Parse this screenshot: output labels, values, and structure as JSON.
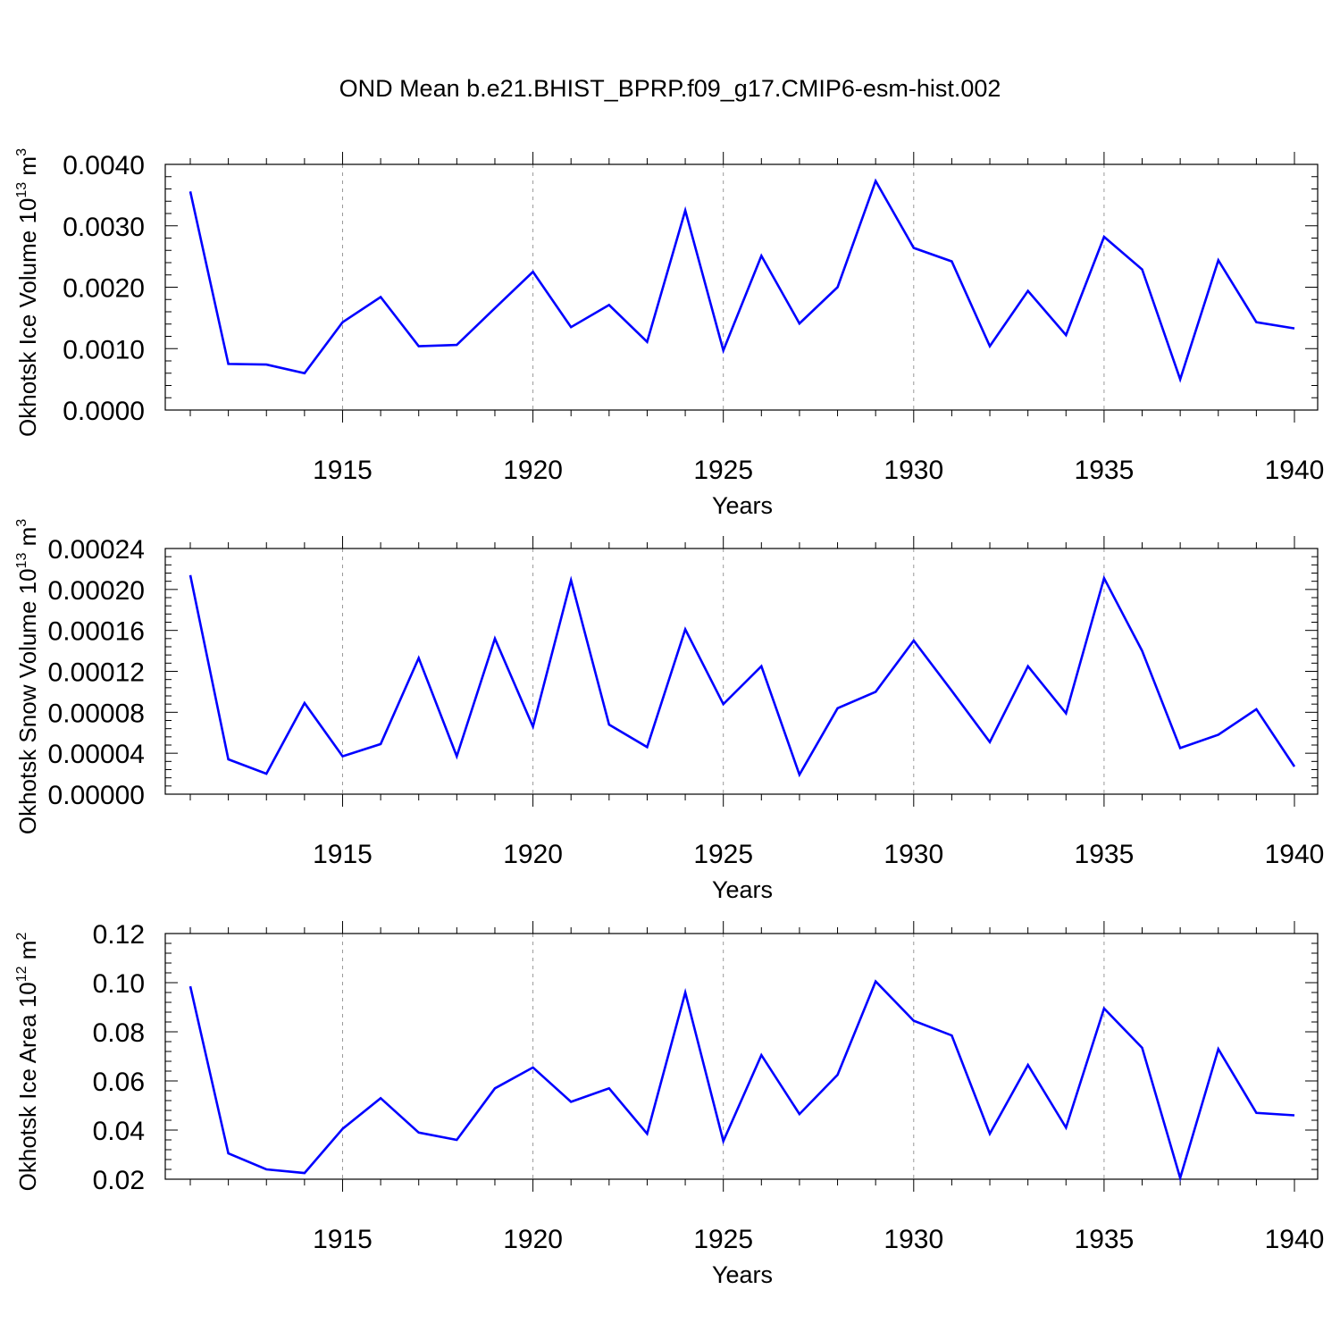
{
  "title": "OND Mean b.e21.BHIST_BPRP.f09_g17.CMIP6-esm-hist.002",
  "colors": {
    "line": "#0000ff",
    "axis": "#000000",
    "grid": "#999999"
  },
  "chart_data": [
    {
      "type": "line",
      "ylabel": "Okhotsk Ice Volume 10",
      "ylabel_exp": "13",
      "ylabel_unit": " m",
      "ylabel_unit_exp": "3",
      "xlabel": "Years",
      "xlim": [
        1911,
        1940
      ],
      "ylim": [
        0,
        0.004
      ],
      "yticks": [
        0,
        0.001,
        0.002,
        0.003,
        0.004
      ],
      "ytick_labels": [
        "0.0000",
        "0.0010",
        "0.0020",
        "0.0030",
        "0.0040"
      ],
      "xticks": [
        1915,
        1920,
        1925,
        1930,
        1935,
        1940
      ],
      "xtick_labels": [
        "1915",
        "1920",
        "1925",
        "1930",
        "1935",
        "1940"
      ],
      "x": [
        1911,
        1912,
        1913,
        1914,
        1915,
        1916,
        1917,
        1918,
        1919,
        1920,
        1921,
        1922,
        1923,
        1924,
        1925,
        1926,
        1927,
        1928,
        1929,
        1930,
        1931,
        1932,
        1933,
        1934,
        1935,
        1936,
        1937,
        1938,
        1939,
        1940
      ],
      "values": [
        0.00356,
        0.00075,
        0.00074,
        0.0006,
        0.00143,
        0.00184,
        0.00104,
        0.00106,
        0.00166,
        0.00225,
        0.00135,
        0.00171,
        0.00111,
        0.00325,
        0.00097,
        0.00251,
        0.00141,
        0.002,
        0.00373,
        0.00264,
        0.00242,
        0.00104,
        0.00194,
        0.00122,
        0.00282,
        0.00229,
        0.0005,
        0.00244,
        0.00143,
        0.00133
      ]
    },
    {
      "type": "line",
      "ylabel": "Okhotsk Snow Volume 10",
      "ylabel_exp": "13",
      "ylabel_unit": " m",
      "ylabel_unit_exp": "3",
      "xlabel": "Years",
      "xlim": [
        1911,
        1940
      ],
      "ylim": [
        0,
        0.00024
      ],
      "yticks": [
        0,
        4e-05,
        8e-05,
        0.00012,
        0.00016,
        0.0002,
        0.00024
      ],
      "ytick_labels": [
        "0.00000",
        "0.00004",
        "0.00008",
        "0.00012",
        "0.00016",
        "0.00020",
        "0.00024"
      ],
      "xticks": [
        1915,
        1920,
        1925,
        1930,
        1935,
        1940
      ],
      "xtick_labels": [
        "1915",
        "1920",
        "1925",
        "1930",
        "1935",
        "1940"
      ],
      "x": [
        1911,
        1912,
        1913,
        1914,
        1915,
        1916,
        1917,
        1918,
        1919,
        1920,
        1921,
        1922,
        1923,
        1924,
        1925,
        1926,
        1927,
        1928,
        1929,
        1930,
        1931,
        1932,
        1933,
        1934,
        1935,
        1936,
        1937,
        1938,
        1939,
        1940
      ],
      "values": [
        0.000214,
        3.4e-05,
        2e-05,
        8.9e-05,
        3.7e-05,
        4.9e-05,
        0.000133,
        3.7e-05,
        0.000152,
        6.6e-05,
        0.000209,
        6.8e-05,
        4.6e-05,
        0.000161,
        8.8e-05,
        0.000125,
        1.9e-05,
        8.4e-05,
        0.0001,
        0.00015,
        0.000101,
        5.1e-05,
        0.000125,
        7.9e-05,
        0.000211,
        0.00014,
        4.5e-05,
        5.8e-05,
        8.3e-05,
        2.7e-05
      ]
    },
    {
      "type": "line",
      "ylabel": "Okhotsk Ice Area 10",
      "ylabel_exp": "12",
      "ylabel_unit": " m",
      "ylabel_unit_exp": "2",
      "xlabel": "Years",
      "xlim": [
        1911,
        1940
      ],
      "ylim": [
        0.02,
        0.12
      ],
      "yticks": [
        0.02,
        0.04,
        0.06,
        0.08,
        0.1,
        0.12
      ],
      "ytick_labels": [
        "0.02",
        "0.04",
        "0.06",
        "0.08",
        "0.10",
        "0.12"
      ],
      "xticks": [
        1915,
        1920,
        1925,
        1930,
        1935,
        1940
      ],
      "xtick_labels": [
        "1915",
        "1920",
        "1925",
        "1930",
        "1935",
        "1940"
      ],
      "x": [
        1911,
        1912,
        1913,
        1914,
        1915,
        1916,
        1917,
        1918,
        1919,
        1920,
        1921,
        1922,
        1923,
        1924,
        1925,
        1926,
        1927,
        1928,
        1929,
        1930,
        1931,
        1932,
        1933,
        1934,
        1935,
        1936,
        1937,
        1938,
        1939,
        1940
      ],
      "values": [
        0.0985,
        0.0305,
        0.024,
        0.0225,
        0.0405,
        0.053,
        0.039,
        0.036,
        0.057,
        0.0655,
        0.0515,
        0.057,
        0.0385,
        0.096,
        0.0355,
        0.0705,
        0.0465,
        0.0625,
        0.1005,
        0.0845,
        0.0785,
        0.0385,
        0.0665,
        0.041,
        0.0895,
        0.0735,
        0.0205,
        0.073,
        0.047,
        0.046
      ]
    }
  ]
}
